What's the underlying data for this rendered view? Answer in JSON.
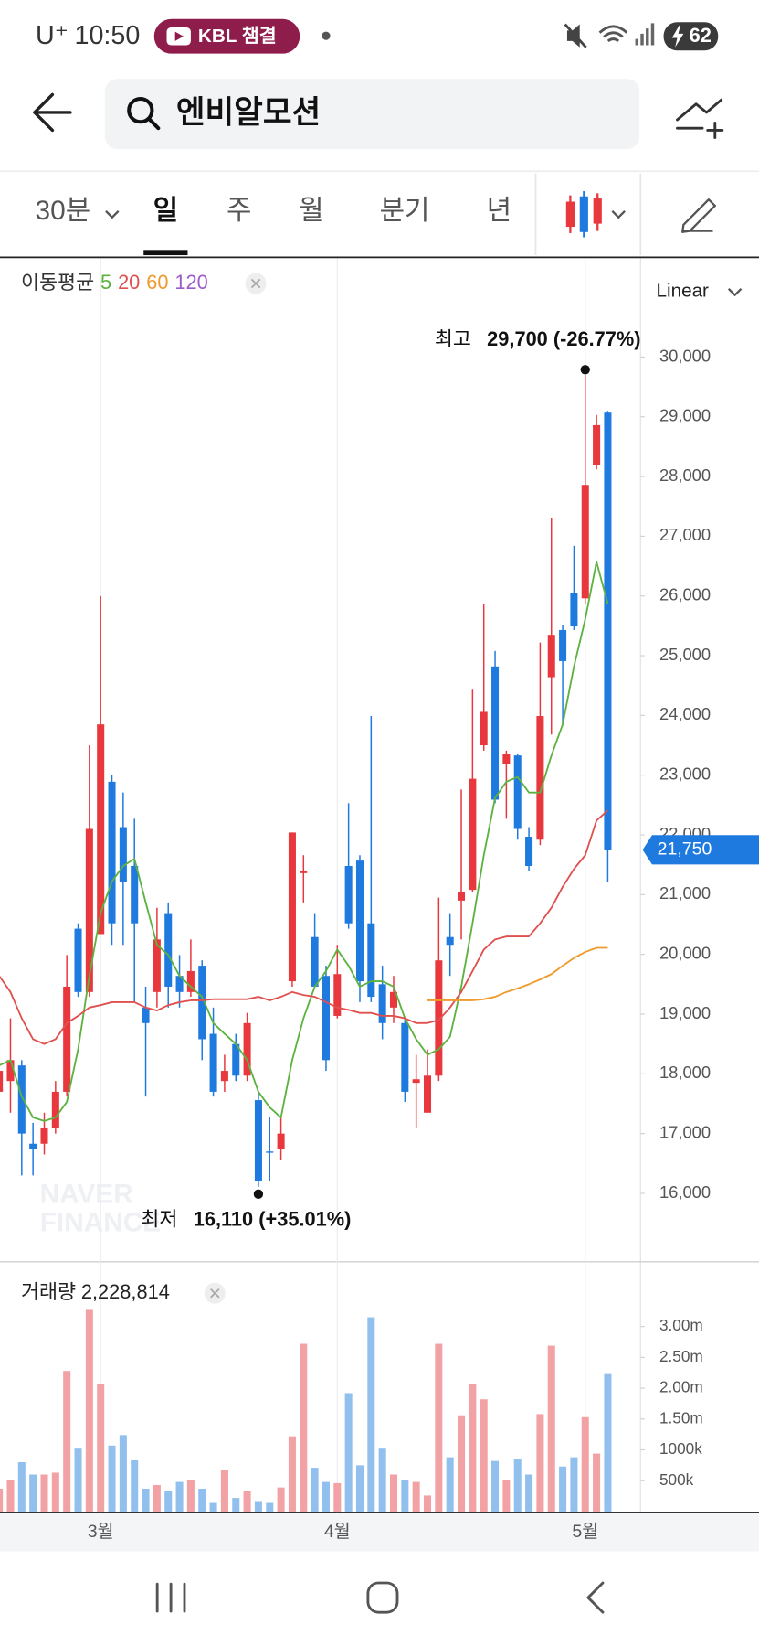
{
  "status_bar": {
    "carrier": "U⁺",
    "time": "10:50",
    "badge": "KBL 챔결",
    "battery": "62"
  },
  "search": {
    "query": "엔비알모션"
  },
  "tabs": {
    "items": [
      "30분",
      "일",
      "주",
      "월",
      "분기",
      "년"
    ],
    "active": 1
  },
  "chart_data": [
    {
      "type": "candlestick",
      "legend_title": "이동평균",
      "scale_label": "Linear",
      "watermark": [
        "NAVER",
        "FINANCE"
      ],
      "up_color": "#e8383d",
      "down_color": "#1f7ae0",
      "open": [
        17700,
        17880,
        18140,
        16830,
        16830,
        17090,
        17700,
        20430,
        19370,
        20340,
        22890,
        22130,
        21480,
        19110,
        19370,
        20690,
        19640,
        19370,
        19810,
        18670,
        17880,
        18500,
        17970,
        17560,
        16700,
        16740,
        19550,
        21360,
        20290,
        19640,
        18970,
        21480,
        21570,
        20520,
        19500,
        19110,
        18850,
        17850,
        17350,
        17970,
        20290,
        20900,
        21080,
        23500,
        24820,
        23190,
        23330,
        21970,
        21920,
        24640,
        25430,
        26050,
        25960,
        28190,
        29070
      ],
      "high": [
        18850,
        18930,
        18230,
        17180,
        17350,
        17880,
        19990,
        20520,
        23500,
        26000,
        23010,
        22710,
        22270,
        19460,
        20780,
        20870,
        19990,
        20250,
        19900,
        19110,
        18320,
        18670,
        19020,
        17700,
        17270,
        17270,
        22040,
        21660,
        20690,
        19810,
        20160,
        22530,
        21660,
        23990,
        19810,
        19640,
        18930,
        18320,
        18410,
        20950,
        20690,
        22760,
        24430,
        25870,
        25080,
        23410,
        23360,
        22130,
        25220,
        27310,
        25520,
        26840,
        29700,
        29030,
        29100
      ],
      "low": [
        17000,
        17350,
        16300,
        16300,
        16650,
        17000,
        17620,
        19290,
        19290,
        20340,
        20160,
        20160,
        19200,
        17620,
        19110,
        19110,
        19110,
        19290,
        18230,
        17620,
        17700,
        17880,
        17880,
        16110,
        16200,
        16560,
        19460,
        20870,
        19460,
        18050,
        18930,
        20430,
        19200,
        19200,
        18580,
        18850,
        17530,
        17090,
        17350,
        17880,
        19640,
        20250,
        21040,
        23410,
        22530,
        22270,
        21920,
        21390,
        21830,
        23680,
        23850,
        25430,
        25870,
        28120,
        21220
      ],
      "close": [
        18050,
        18230,
        17000,
        16740,
        17090,
        17700,
        19460,
        19370,
        22100,
        23850,
        20520,
        21220,
        20520,
        18850,
        20250,
        19460,
        19370,
        19720,
        18580,
        17700,
        18050,
        17970,
        18850,
        16210,
        16690,
        17000,
        22040,
        21390,
        19460,
        18230,
        19670,
        20520,
        19550,
        19290,
        18850,
        19370,
        17700,
        17910,
        17970,
        19900,
        20160,
        21040,
        22940,
        24060,
        22590,
        23360,
        22100,
        21480,
        23990,
        25350,
        24910,
        25490,
        27860,
        28860,
        21750
      ],
      "series": [
        {
          "name": "5",
          "color": "#5cb23f",
          "values": [
            18140,
            18230,
            17620,
            17270,
            17210,
            17270,
            17530,
            18410,
            19640,
            20690,
            21220,
            21480,
            21600,
            20870,
            20160,
            19990,
            19640,
            19460,
            19290,
            18850,
            18670,
            18500,
            18230,
            17700,
            17440,
            17270,
            18230,
            18930,
            19460,
            19720,
            20080,
            19810,
            19460,
            19550,
            19550,
            19460,
            18930,
            18580,
            18320,
            18410,
            18620,
            19460,
            20520,
            21660,
            22620,
            22890,
            22970,
            22710,
            22710,
            23330,
            23850,
            24820,
            25610,
            26570,
            25870
          ]
        },
        {
          "name": "20",
          "color": "#e0504f",
          "values": [
            19640,
            19370,
            18930,
            18580,
            18500,
            18580,
            18850,
            18970,
            19110,
            19150,
            19200,
            19200,
            19200,
            19110,
            19060,
            19150,
            19200,
            19230,
            19230,
            19250,
            19250,
            19250,
            19250,
            19290,
            19230,
            19290,
            19370,
            19320,
            19290,
            19200,
            19110,
            19070,
            19020,
            19020,
            18970,
            18970,
            18930,
            18850,
            18850,
            18900,
            19110,
            19370,
            19720,
            20080,
            20250,
            20300,
            20300,
            20300,
            20520,
            20780,
            21130,
            21430,
            21660,
            22240,
            22410
          ]
        },
        {
          "name": "60",
          "color": "#ee9a2c",
          "values": [
            null,
            null,
            null,
            null,
            null,
            null,
            null,
            null,
            null,
            null,
            null,
            null,
            null,
            null,
            null,
            null,
            null,
            null,
            null,
            null,
            null,
            null,
            null,
            null,
            null,
            null,
            null,
            null,
            null,
            null,
            null,
            null,
            null,
            null,
            null,
            null,
            null,
            null,
            19230,
            19230,
            19230,
            19230,
            19230,
            19250,
            19290,
            19370,
            19430,
            19500,
            19580,
            19670,
            19810,
            19940,
            20040,
            20110,
            20110
          ]
        },
        {
          "name": "120",
          "color": "#9b5cc9",
          "values": [
            null,
            null,
            null,
            null,
            null,
            null,
            null,
            null,
            null,
            null,
            null,
            null,
            null,
            null,
            null,
            null,
            null,
            null,
            null,
            null,
            null,
            null,
            null,
            null,
            null,
            null,
            null,
            null,
            null,
            null,
            null,
            null,
            null,
            null,
            null,
            null,
            null,
            null,
            null,
            null,
            null,
            null,
            null,
            null,
            null,
            null,
            null,
            null,
            null,
            null,
            null,
            null,
            null,
            null,
            null
          ]
        }
      ],
      "ylim": [
        14890,
        31670
      ],
      "yticks": [
        {
          "value": 16000,
          "label": "16,000"
        },
        {
          "value": 17000,
          "label": "17,000"
        },
        {
          "value": 18000,
          "label": "18,000"
        },
        {
          "value": 19000,
          "label": "19,000"
        },
        {
          "value": 20000,
          "label": "20,000"
        },
        {
          "value": 21000,
          "label": "21,000"
        },
        {
          "value": 22000,
          "label": "22,000"
        },
        {
          "value": 23000,
          "label": "23,000"
        },
        {
          "value": 24000,
          "label": "24,000"
        },
        {
          "value": 25000,
          "label": "25,000"
        },
        {
          "value": 26000,
          "label": "26,000"
        },
        {
          "value": 27000,
          "label": "27,000"
        },
        {
          "value": 28000,
          "label": "28,000"
        },
        {
          "value": 29000,
          "label": "29,000"
        },
        {
          "value": 30000,
          "label": "30,000"
        }
      ],
      "grid": false,
      "high_annotation": {
        "label": "최고",
        "text": "29,700 (-26.77%)"
      },
      "low_annotation": {
        "label": "최저",
        "text": "16,110 (+35.01%)"
      },
      "current_label": "21,750"
    },
    {
      "type": "bar",
      "title": "거래량",
      "value_label": "2,228,814",
      "up_color": "#f2a2a4",
      "down_color": "#92c0ee",
      "categories": [
        null,
        null,
        null,
        null,
        null,
        null,
        null,
        null,
        null,
        "3월",
        null,
        null,
        null,
        null,
        null,
        null,
        null,
        null,
        null,
        null,
        null,
        null,
        null,
        null,
        null,
        null,
        null,
        null,
        null,
        null,
        "4월",
        null,
        null,
        null,
        null,
        null,
        null,
        null,
        null,
        null,
        null,
        null,
        null,
        null,
        null,
        null,
        null,
        null,
        null,
        null,
        null,
        null,
        "5월",
        null,
        null
      ],
      "values": [
        370000,
        510000,
        800000,
        600000,
        600000,
        630000,
        2280000,
        1020000,
        3270000,
        2070000,
        1070000,
        1240000,
        830000,
        370000,
        430000,
        340000,
        480000,
        510000,
        370000,
        140000,
        680000,
        220000,
        340000,
        170000,
        140000,
        390000,
        1220000,
        2720000,
        710000,
        480000,
        460000,
        1920000,
        750000,
        3150000,
        1020000,
        600000,
        510000,
        480000,
        260000,
        2720000,
        880000,
        1560000,
        2070000,
        1820000,
        820000,
        510000,
        850000,
        600000,
        1580000,
        2690000,
        730000,
        880000,
        1530000,
        940000,
        2228814
      ],
      "ylim": [
        0,
        4000000
      ],
      "yticks": [
        {
          "value": 500000,
          "label": "500k"
        },
        {
          "value": 1000000,
          "label": "1000k"
        },
        {
          "value": 1500000,
          "label": "1.50m"
        },
        {
          "value": 2000000,
          "label": "2.00m"
        },
        {
          "value": 2500000,
          "label": "2.50m"
        },
        {
          "value": 3000000,
          "label": "3.00m"
        }
      ]
    }
  ]
}
